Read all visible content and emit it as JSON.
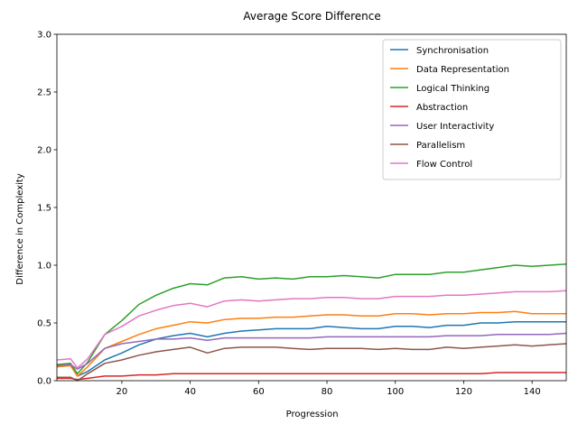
{
  "chart_data": {
    "type": "line",
    "title": "Average Score Difference",
    "xlabel": "Progression",
    "ylabel": "Difference in Complexity",
    "xlim": [
      1,
      150
    ],
    "ylim": [
      0,
      3.0
    ],
    "xticks": [
      20,
      40,
      60,
      80,
      100,
      120,
      140
    ],
    "yticks": [
      0.0,
      0.5,
      1.0,
      1.5,
      2.0,
      2.5,
      3.0
    ],
    "ytick_labels": [
      "0.0",
      "0.5",
      "1.0",
      "1.5",
      "2.0",
      "2.5",
      "3.0"
    ],
    "grid": false,
    "legend_position": "top-right",
    "series": [
      {
        "name": "Synchronisation",
        "color": "#1f77b4",
        "points": [
          [
            1,
            0.12
          ],
          [
            5,
            0.14
          ],
          [
            7,
            0.04
          ],
          [
            10,
            0.08
          ],
          [
            15,
            0.18
          ],
          [
            20,
            0.24
          ],
          [
            25,
            0.31
          ],
          [
            30,
            0.36
          ],
          [
            35,
            0.39
          ],
          [
            40,
            0.41
          ],
          [
            45,
            0.38
          ],
          [
            50,
            0.41
          ],
          [
            55,
            0.43
          ],
          [
            60,
            0.44
          ],
          [
            65,
            0.45
          ],
          [
            70,
            0.45
          ],
          [
            75,
            0.45
          ],
          [
            80,
            0.47
          ],
          [
            85,
            0.46
          ],
          [
            90,
            0.45
          ],
          [
            95,
            0.45
          ],
          [
            100,
            0.47
          ],
          [
            105,
            0.47
          ],
          [
            110,
            0.46
          ],
          [
            115,
            0.48
          ],
          [
            120,
            0.48
          ],
          [
            125,
            0.5
          ],
          [
            130,
            0.5
          ],
          [
            135,
            0.51
          ],
          [
            140,
            0.51
          ],
          [
            145,
            0.51
          ],
          [
            150,
            0.51
          ]
        ]
      },
      {
        "name": "Data Representation",
        "color": "#ff7f0e",
        "points": [
          [
            1,
            0.12
          ],
          [
            5,
            0.13
          ],
          [
            7,
            0.04
          ],
          [
            10,
            0.12
          ],
          [
            15,
            0.28
          ],
          [
            20,
            0.34
          ],
          [
            25,
            0.4
          ],
          [
            30,
            0.45
          ],
          [
            35,
            0.48
          ],
          [
            40,
            0.51
          ],
          [
            45,
            0.5
          ],
          [
            50,
            0.53
          ],
          [
            55,
            0.54
          ],
          [
            60,
            0.54
          ],
          [
            65,
            0.55
          ],
          [
            70,
            0.55
          ],
          [
            75,
            0.56
          ],
          [
            80,
            0.57
          ],
          [
            85,
            0.57
          ],
          [
            90,
            0.56
          ],
          [
            95,
            0.56
          ],
          [
            100,
            0.58
          ],
          [
            105,
            0.58
          ],
          [
            110,
            0.57
          ],
          [
            115,
            0.58
          ],
          [
            120,
            0.58
          ],
          [
            125,
            0.59
          ],
          [
            130,
            0.59
          ],
          [
            135,
            0.6
          ],
          [
            140,
            0.58
          ],
          [
            145,
            0.58
          ],
          [
            150,
            0.58
          ]
        ]
      },
      {
        "name": "Logical Thinking",
        "color": "#2ca02c",
        "points": [
          [
            1,
            0.14
          ],
          [
            5,
            0.15
          ],
          [
            7,
            0.06
          ],
          [
            10,
            0.16
          ],
          [
            15,
            0.4
          ],
          [
            20,
            0.52
          ],
          [
            25,
            0.66
          ],
          [
            30,
            0.74
          ],
          [
            35,
            0.8
          ],
          [
            40,
            0.84
          ],
          [
            45,
            0.83
          ],
          [
            50,
            0.89
          ],
          [
            55,
            0.9
          ],
          [
            60,
            0.88
          ],
          [
            65,
            0.89
          ],
          [
            70,
            0.88
          ],
          [
            75,
            0.9
          ],
          [
            80,
            0.9
          ],
          [
            85,
            0.91
          ],
          [
            90,
            0.9
          ],
          [
            95,
            0.89
          ],
          [
            100,
            0.92
          ],
          [
            105,
            0.92
          ],
          [
            110,
            0.92
          ],
          [
            115,
            0.94
          ],
          [
            120,
            0.94
          ],
          [
            125,
            0.96
          ],
          [
            130,
            0.98
          ],
          [
            135,
            1.0
          ],
          [
            140,
            0.99
          ],
          [
            145,
            1.0
          ],
          [
            150,
            1.01
          ]
        ]
      },
      {
        "name": "Abstraction",
        "color": "#d62728",
        "points": [
          [
            1,
            0.02
          ],
          [
            5,
            0.02
          ],
          [
            7,
            0.01
          ],
          [
            10,
            0.02
          ],
          [
            15,
            0.04
          ],
          [
            20,
            0.04
          ],
          [
            25,
            0.05
          ],
          [
            30,
            0.05
          ],
          [
            35,
            0.06
          ],
          [
            40,
            0.06
          ],
          [
            45,
            0.06
          ],
          [
            50,
            0.06
          ],
          [
            55,
            0.06
          ],
          [
            60,
            0.06
          ],
          [
            65,
            0.06
          ],
          [
            70,
            0.06
          ],
          [
            75,
            0.06
          ],
          [
            80,
            0.06
          ],
          [
            85,
            0.06
          ],
          [
            90,
            0.06
          ],
          [
            95,
            0.06
          ],
          [
            100,
            0.06
          ],
          [
            105,
            0.06
          ],
          [
            110,
            0.06
          ],
          [
            115,
            0.06
          ],
          [
            120,
            0.06
          ],
          [
            125,
            0.06
          ],
          [
            130,
            0.07
          ],
          [
            135,
            0.07
          ],
          [
            140,
            0.07
          ],
          [
            145,
            0.07
          ],
          [
            150,
            0.07
          ]
        ]
      },
      {
        "name": "User Interactivity",
        "color": "#9467bd",
        "points": [
          [
            1,
            0.13
          ],
          [
            5,
            0.14
          ],
          [
            7,
            0.1
          ],
          [
            10,
            0.15
          ],
          [
            15,
            0.28
          ],
          [
            20,
            0.32
          ],
          [
            25,
            0.34
          ],
          [
            30,
            0.36
          ],
          [
            35,
            0.36
          ],
          [
            40,
            0.37
          ],
          [
            45,
            0.35
          ],
          [
            50,
            0.37
          ],
          [
            55,
            0.37
          ],
          [
            60,
            0.37
          ],
          [
            65,
            0.37
          ],
          [
            70,
            0.37
          ],
          [
            75,
            0.37
          ],
          [
            80,
            0.38
          ],
          [
            85,
            0.38
          ],
          [
            90,
            0.38
          ],
          [
            95,
            0.38
          ],
          [
            100,
            0.38
          ],
          [
            105,
            0.38
          ],
          [
            110,
            0.38
          ],
          [
            115,
            0.39
          ],
          [
            120,
            0.39
          ],
          [
            125,
            0.39
          ],
          [
            130,
            0.4
          ],
          [
            135,
            0.4
          ],
          [
            140,
            0.4
          ],
          [
            145,
            0.4
          ],
          [
            150,
            0.41
          ]
        ]
      },
      {
        "name": "Parallelism",
        "color": "#8c564b",
        "points": [
          [
            1,
            0.03
          ],
          [
            5,
            0.03
          ],
          [
            7,
            0.0
          ],
          [
            10,
            0.06
          ],
          [
            15,
            0.15
          ],
          [
            20,
            0.18
          ],
          [
            25,
            0.22
          ],
          [
            30,
            0.25
          ],
          [
            35,
            0.27
          ],
          [
            40,
            0.29
          ],
          [
            45,
            0.24
          ],
          [
            50,
            0.28
          ],
          [
            55,
            0.29
          ],
          [
            60,
            0.29
          ],
          [
            65,
            0.29
          ],
          [
            70,
            0.28
          ],
          [
            75,
            0.27
          ],
          [
            80,
            0.28
          ],
          [
            85,
            0.28
          ],
          [
            90,
            0.28
          ],
          [
            95,
            0.27
          ],
          [
            100,
            0.28
          ],
          [
            105,
            0.27
          ],
          [
            110,
            0.27
          ],
          [
            115,
            0.29
          ],
          [
            120,
            0.28
          ],
          [
            125,
            0.29
          ],
          [
            130,
            0.3
          ],
          [
            135,
            0.31
          ],
          [
            140,
            0.3
          ],
          [
            145,
            0.31
          ],
          [
            150,
            0.32
          ]
        ]
      },
      {
        "name": "Flow Control",
        "color": "#e377c2",
        "points": [
          [
            1,
            0.18
          ],
          [
            5,
            0.19
          ],
          [
            7,
            0.11
          ],
          [
            10,
            0.19
          ],
          [
            15,
            0.4
          ],
          [
            20,
            0.47
          ],
          [
            25,
            0.56
          ],
          [
            30,
            0.61
          ],
          [
            35,
            0.65
          ],
          [
            40,
            0.67
          ],
          [
            45,
            0.64
          ],
          [
            50,
            0.69
          ],
          [
            55,
            0.7
          ],
          [
            60,
            0.69
          ],
          [
            65,
            0.7
          ],
          [
            70,
            0.71
          ],
          [
            75,
            0.71
          ],
          [
            80,
            0.72
          ],
          [
            85,
            0.72
          ],
          [
            90,
            0.71
          ],
          [
            95,
            0.71
          ],
          [
            100,
            0.73
          ],
          [
            105,
            0.73
          ],
          [
            110,
            0.73
          ],
          [
            115,
            0.74
          ],
          [
            120,
            0.74
          ],
          [
            125,
            0.75
          ],
          [
            130,
            0.76
          ],
          [
            135,
            0.77
          ],
          [
            140,
            0.77
          ],
          [
            145,
            0.77
          ],
          [
            150,
            0.78
          ]
        ]
      }
    ]
  }
}
